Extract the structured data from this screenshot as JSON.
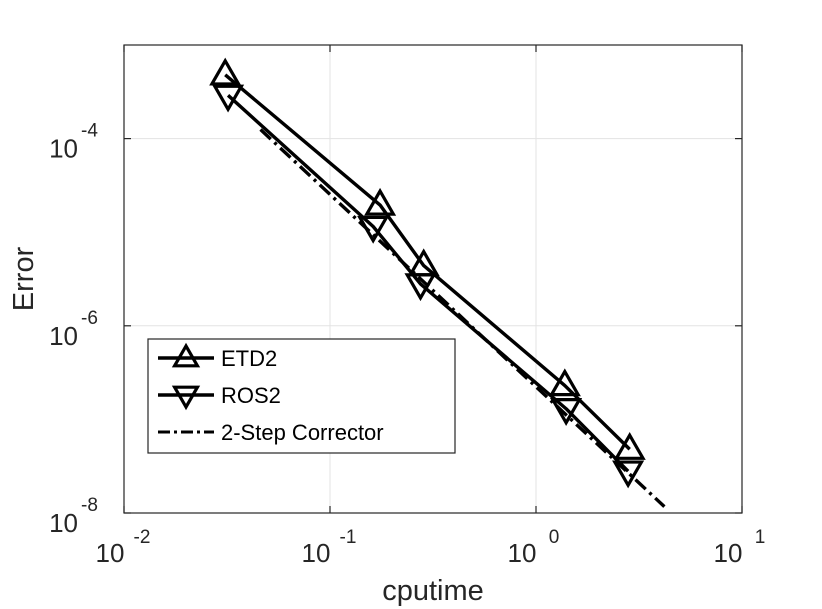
{
  "chart_data": {
    "type": "line",
    "xscale": "log",
    "yscale": "log",
    "xlabel": "cputime",
    "ylabel": "Error",
    "xlim": [
      0.01,
      10
    ],
    "ylim": [
      1e-08,
      0.001
    ],
    "grid": true,
    "legend_position": "bottom-left",
    "xticks": [
      {
        "value": 0.01,
        "base": "10",
        "exp": "-2"
      },
      {
        "value": 0.1,
        "base": "10",
        "exp": "-1"
      },
      {
        "value": 1,
        "base": "10",
        "exp": "0"
      },
      {
        "value": 10,
        "base": "10",
        "exp": "1"
      }
    ],
    "yticks": [
      {
        "value": 1e-08,
        "base": "10",
        "exp": "-8"
      },
      {
        "value": 1e-06,
        "base": "10",
        "exp": "-6"
      },
      {
        "value": 0.0001,
        "base": "10",
        "exp": "-4"
      }
    ],
    "series": [
      {
        "name": "ETD2",
        "marker": "triangle-up",
        "linestyle": "solid",
        "color": "#000000",
        "x": [
          0.031,
          0.175,
          0.285,
          1.38,
          2.85
        ],
        "y": [
          0.00048,
          1.95e-05,
          4.4e-06,
          2.3e-07,
          4.8e-08
        ]
      },
      {
        "name": "ROS2",
        "marker": "triangle-down",
        "linestyle": "solid",
        "color": "#000000",
        "x": [
          0.032,
          0.162,
          0.275,
          1.4,
          2.8
        ],
        "y": [
          0.00029,
          1.15e-05,
          2.8e-06,
          1.3e-07,
          2.8e-08
        ]
      },
      {
        "name": "2-Step Corrector",
        "marker": "none",
        "linestyle": "dashdot",
        "color": "#000000",
        "x": [
          0.046,
          4.2
        ],
        "y": [
          0.000125,
          1.17e-08
        ]
      }
    ]
  }
}
